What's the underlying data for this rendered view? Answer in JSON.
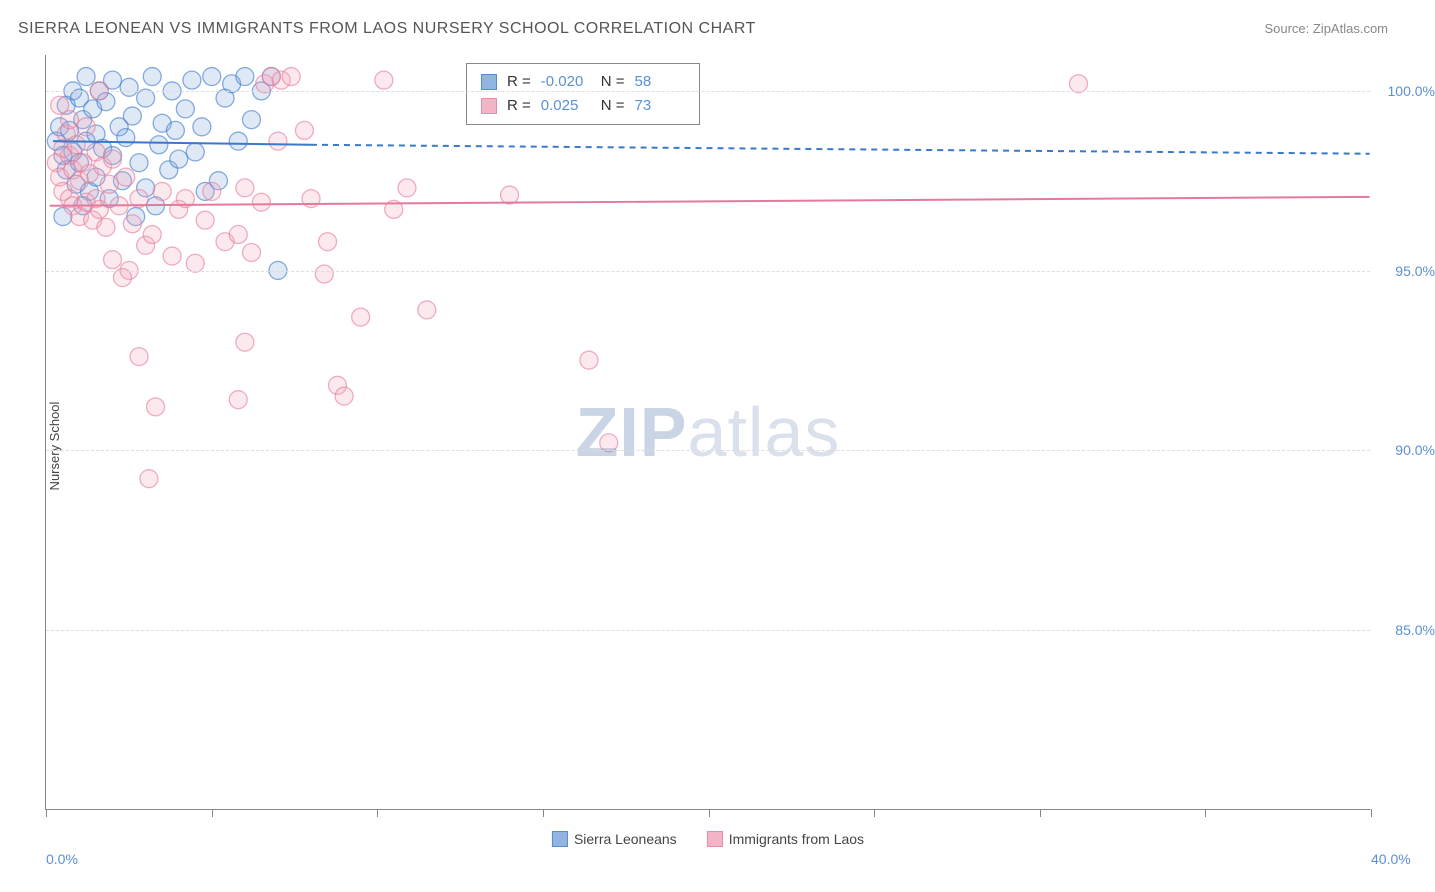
{
  "title": "SIERRA LEONEAN VS IMMIGRANTS FROM LAOS NURSERY SCHOOL CORRELATION CHART",
  "source": "Source: ZipAtlas.com",
  "ylabel": "Nursery School",
  "watermark_bold": "ZIP",
  "watermark_rest": "atlas",
  "chart": {
    "type": "scatter",
    "xlim": [
      0,
      40
    ],
    "ylim": [
      80,
      101
    ],
    "background_color": "#ffffff",
    "grid_color": "#dddddd",
    "axis_color": "#888888",
    "tick_label_color": "#5b8fd6",
    "tick_fontsize": 14,
    "ylabel_fontsize": 13,
    "marker_radius": 9,
    "marker_fill_opacity": 0.25,
    "marker_stroke_width": 1.3,
    "xticks": [
      0,
      5,
      10,
      15,
      20,
      25,
      30,
      35,
      40
    ],
    "xtick_labels_shown": {
      "0": "0.0%",
      "40": "40.0%"
    },
    "yticks": [
      85,
      90,
      95,
      100
    ],
    "ytick_labels": {
      "85": "85.0%",
      "90": "90.0%",
      "95": "95.0%",
      "100": "100.0%"
    }
  },
  "series": [
    {
      "id": "blue",
      "label": "Sierra Leoneans",
      "color_stroke": "#3b78c9",
      "color_fill": "#7ea8dd",
      "R": "-0.020",
      "N": "58",
      "trend": {
        "x1": 0.2,
        "y1": 98.6,
        "x2_solid": 8.0,
        "y2_solid": 98.5,
        "x2": 40,
        "y2": 98.25,
        "dash": "6,5",
        "width": 2
      },
      "points": [
        [
          0.3,
          98.6
        ],
        [
          0.4,
          99.0
        ],
        [
          0.5,
          98.2
        ],
        [
          0.6,
          99.6
        ],
        [
          0.6,
          97.8
        ],
        [
          0.7,
          98.9
        ],
        [
          0.8,
          100.0
        ],
        [
          0.8,
          98.3
        ],
        [
          0.9,
          97.4
        ],
        [
          1.0,
          99.8
        ],
        [
          1.0,
          98.0
        ],
        [
          1.1,
          99.2
        ],
        [
          1.2,
          100.4
        ],
        [
          1.2,
          98.6
        ],
        [
          1.3,
          97.2
        ],
        [
          1.4,
          99.5
        ],
        [
          1.5,
          98.8
        ],
        [
          1.5,
          97.6
        ],
        [
          1.6,
          100.0
        ],
        [
          1.7,
          98.4
        ],
        [
          1.8,
          99.7
        ],
        [
          1.9,
          97.0
        ],
        [
          2.0,
          98.2
        ],
        [
          2.0,
          100.3
        ],
        [
          2.2,
          99.0
        ],
        [
          2.3,
          97.5
        ],
        [
          2.4,
          98.7
        ],
        [
          2.5,
          100.1
        ],
        [
          2.6,
          99.3
        ],
        [
          2.8,
          98.0
        ],
        [
          3.0,
          99.8
        ],
        [
          3.0,
          97.3
        ],
        [
          3.2,
          100.4
        ],
        [
          3.4,
          98.5
        ],
        [
          3.5,
          99.1
        ],
        [
          3.7,
          97.8
        ],
        [
          3.8,
          100.0
        ],
        [
          3.9,
          98.9
        ],
        [
          4.0,
          98.1
        ],
        [
          4.2,
          99.5
        ],
        [
          4.4,
          100.3
        ],
        [
          4.5,
          98.3
        ],
        [
          4.7,
          99.0
        ],
        [
          5.0,
          100.4
        ],
        [
          5.2,
          97.5
        ],
        [
          5.4,
          99.8
        ],
        [
          5.6,
          100.2
        ],
        [
          5.8,
          98.6
        ],
        [
          6.0,
          100.4
        ],
        [
          6.2,
          99.2
        ],
        [
          6.5,
          100.0
        ],
        [
          6.8,
          100.4
        ],
        [
          7.0,
          95.0
        ],
        [
          4.8,
          97.2
        ],
        [
          3.3,
          96.8
        ],
        [
          2.7,
          96.5
        ],
        [
          1.1,
          96.8
        ],
        [
          0.5,
          96.5
        ]
      ]
    },
    {
      "id": "pink",
      "label": "Immigrants from Laos",
      "color_stroke": "#e47a9a",
      "color_fill": "#f2a8bc",
      "R": "0.025",
      "N": "73",
      "trend": {
        "x1": 0.1,
        "y1": 96.8,
        "x2_solid": 40,
        "y2_solid": 97.05,
        "x2": 40,
        "y2": 97.05,
        "dash": "none",
        "width": 2
      },
      "points": [
        [
          0.3,
          98.0
        ],
        [
          0.4,
          97.6
        ],
        [
          0.5,
          98.4
        ],
        [
          0.5,
          97.2
        ],
        [
          0.6,
          98.8
        ],
        [
          0.7,
          97.0
        ],
        [
          0.7,
          98.2
        ],
        [
          0.8,
          96.8
        ],
        [
          0.8,
          97.8
        ],
        [
          0.9,
          98.5
        ],
        [
          1.0,
          96.5
        ],
        [
          1.0,
          97.5
        ],
        [
          1.1,
          98.0
        ],
        [
          1.2,
          96.9
        ],
        [
          1.3,
          97.7
        ],
        [
          1.4,
          96.4
        ],
        [
          1.5,
          98.3
        ],
        [
          1.5,
          97.0
        ],
        [
          1.6,
          96.7
        ],
        [
          1.7,
          97.9
        ],
        [
          1.8,
          96.2
        ],
        [
          1.9,
          97.4
        ],
        [
          2.0,
          98.1
        ],
        [
          2.0,
          95.3
        ],
        [
          2.2,
          96.8
        ],
        [
          2.4,
          97.6
        ],
        [
          2.5,
          95.0
        ],
        [
          2.6,
          96.3
        ],
        [
          2.8,
          97.0
        ],
        [
          3.0,
          95.7
        ],
        [
          3.2,
          96.0
        ],
        [
          3.5,
          97.2
        ],
        [
          3.8,
          95.4
        ],
        [
          4.0,
          96.7
        ],
        [
          4.2,
          97.0
        ],
        [
          4.5,
          95.2
        ],
        [
          4.8,
          96.4
        ],
        [
          5.0,
          97.2
        ],
        [
          5.4,
          95.8
        ],
        [
          5.8,
          96.0
        ],
        [
          6.0,
          97.3
        ],
        [
          6.2,
          95.5
        ],
        [
          6.5,
          96.9
        ],
        [
          6.6,
          100.2
        ],
        [
          6.8,
          100.4
        ],
        [
          7.0,
          98.6
        ],
        [
          7.1,
          100.3
        ],
        [
          7.4,
          100.4
        ],
        [
          7.8,
          98.9
        ],
        [
          8.0,
          97.0
        ],
        [
          8.4,
          94.9
        ],
        [
          8.8,
          91.8
        ],
        [
          9.0,
          91.5
        ],
        [
          9.5,
          93.7
        ],
        [
          10.5,
          96.7
        ],
        [
          10.2,
          100.3
        ],
        [
          10.9,
          97.3
        ],
        [
          11.5,
          93.9
        ],
        [
          14.0,
          97.1
        ],
        [
          16.4,
          92.5
        ],
        [
          17.0,
          90.2
        ],
        [
          2.8,
          92.6
        ],
        [
          3.1,
          89.2
        ],
        [
          3.3,
          91.2
        ],
        [
          2.3,
          94.8
        ],
        [
          5.8,
          91.4
        ],
        [
          0.4,
          99.6
        ],
        [
          0.7,
          99.2
        ],
        [
          1.2,
          99.0
        ],
        [
          1.6,
          100.0
        ],
        [
          31.2,
          100.2
        ],
        [
          6.0,
          93.0
        ],
        [
          8.5,
          95.8
        ]
      ]
    }
  ],
  "stats_labels": {
    "R": "R =",
    "N": "N ="
  },
  "legend_bottom": [
    {
      "label": "Sierra Leoneans",
      "fill": "#7ea8dd",
      "stroke": "#3b78c9"
    },
    {
      "label": "Immigrants from Laos",
      "fill": "#f2a8bc",
      "stroke": "#e47a9a"
    }
  ]
}
